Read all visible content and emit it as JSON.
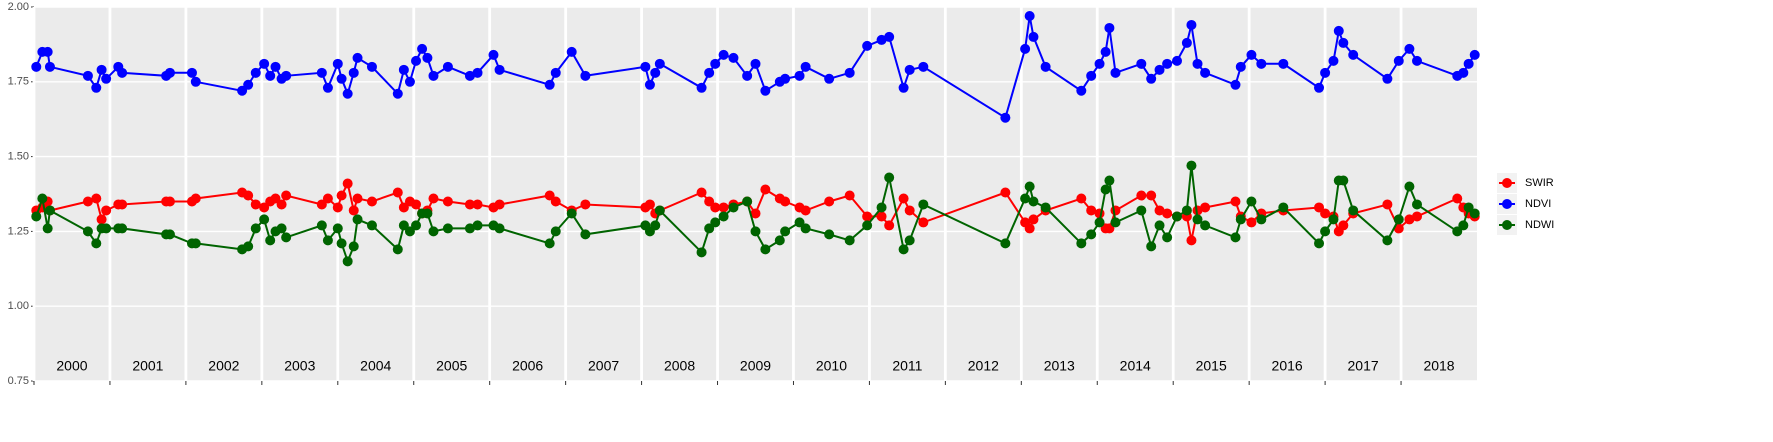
{
  "chart_data": {
    "type": "line",
    "x": [
      2000.03,
      2000.11,
      2000.18,
      2000.21,
      2000.71,
      2000.82,
      2000.89,
      2000.95,
      2001.11,
      2001.16,
      2001.74,
      2001.79,
      2002.08,
      2002.13,
      2002.74,
      2002.82,
      2002.92,
      2003.03,
      2003.11,
      2003.18,
      2003.26,
      2003.32,
      2003.79,
      2003.87,
      2004.0,
      2004.05,
      2004.13,
      2004.21,
      2004.26,
      2004.45,
      2004.79,
      2004.87,
      2004.95,
      2005.03,
      2005.11,
      2005.18,
      2005.26,
      2005.45,
      2005.74,
      2005.84,
      2006.05,
      2006.13,
      2006.79,
      2006.87,
      2007.08,
      2007.26,
      2008.05,
      2008.11,
      2008.18,
      2008.24,
      2008.79,
      2008.89,
      2008.97,
      2009.08,
      2009.21,
      2009.39,
      2009.5,
      2009.63,
      2009.82,
      2009.89,
      2010.08,
      2010.16,
      2010.47,
      2010.74,
      2010.97,
      2011.16,
      2011.26,
      2011.45,
      2011.53,
      2011.71,
      2012.79,
      2013.05,
      2013.11,
      2013.16,
      2013.32,
      2013.79,
      2013.92,
      2014.03,
      2014.11,
      2014.16,
      2014.24,
      2014.58,
      2014.71,
      2014.82,
      2014.92,
      2015.05,
      2015.18,
      2015.24,
      2015.32,
      2015.42,
      2015.82,
      2015.89,
      2016.03,
      2016.16,
      2016.45,
      2016.92,
      2017.0,
      2017.11,
      2017.18,
      2017.24,
      2017.37,
      2017.82,
      2017.97,
      2018.11,
      2018.21,
      2018.74,
      2018.82,
      2018.89,
      2018.97
    ],
    "series": [
      {
        "name": "SWIR",
        "color": "#ff0000",
        "values": [
          1.32,
          1.33,
          1.35,
          1.32,
          1.35,
          1.36,
          1.29,
          1.32,
          1.34,
          1.34,
          1.35,
          1.35,
          1.35,
          1.36,
          1.38,
          1.37,
          1.34,
          1.33,
          1.35,
          1.36,
          1.34,
          1.37,
          1.34,
          1.36,
          1.33,
          1.37,
          1.41,
          1.32,
          1.36,
          1.35,
          1.38,
          1.33,
          1.35,
          1.34,
          1.31,
          1.32,
          1.36,
          1.35,
          1.34,
          1.34,
          1.33,
          1.34,
          1.37,
          1.35,
          1.32,
          1.34,
          1.33,
          1.34,
          1.31,
          1.32,
          1.38,
          1.35,
          1.33,
          1.33,
          1.34,
          1.35,
          1.31,
          1.39,
          1.36,
          1.35,
          1.33,
          1.32,
          1.35,
          1.37,
          1.3,
          1.3,
          1.27,
          1.36,
          1.32,
          1.28,
          1.38,
          1.28,
          1.26,
          1.29,
          1.32,
          1.36,
          1.32,
          1.31,
          1.26,
          1.26,
          1.32,
          1.37,
          1.37,
          1.32,
          1.31,
          1.3,
          1.3,
          1.22,
          1.32,
          1.33,
          1.35,
          1.3,
          1.28,
          1.31,
          1.32,
          1.33,
          1.31,
          1.3,
          1.25,
          1.27,
          1.31,
          1.34,
          1.26,
          1.29,
          1.3,
          1.36,
          1.33,
          1.31,
          1.3
        ]
      },
      {
        "name": "NDVI",
        "color": "#0000ff",
        "values": [
          1.8,
          1.85,
          1.85,
          1.8,
          1.77,
          1.73,
          1.79,
          1.76,
          1.8,
          1.78,
          1.77,
          1.78,
          1.78,
          1.75,
          1.72,
          1.74,
          1.78,
          1.81,
          1.77,
          1.8,
          1.76,
          1.77,
          1.78,
          1.73,
          1.81,
          1.76,
          1.71,
          1.78,
          1.83,
          1.8,
          1.71,
          1.79,
          1.75,
          1.82,
          1.86,
          1.83,
          1.77,
          1.8,
          1.77,
          1.78,
          1.84,
          1.79,
          1.74,
          1.78,
          1.85,
          1.77,
          1.8,
          1.74,
          1.78,
          1.81,
          1.73,
          1.78,
          1.81,
          1.84,
          1.83,
          1.77,
          1.81,
          1.72,
          1.75,
          1.76,
          1.77,
          1.8,
          1.76,
          1.78,
          1.87,
          1.89,
          1.9,
          1.73,
          1.79,
          1.8,
          1.63,
          1.86,
          1.97,
          1.9,
          1.8,
          1.72,
          1.77,
          1.81,
          1.85,
          1.93,
          1.78,
          1.81,
          1.76,
          1.79,
          1.81,
          1.82,
          1.88,
          1.94,
          1.81,
          1.78,
          1.74,
          1.8,
          1.84,
          1.81,
          1.81,
          1.73,
          1.78,
          1.82,
          1.92,
          1.88,
          1.84,
          1.76,
          1.82,
          1.86,
          1.82,
          1.77,
          1.78,
          1.81,
          1.84
        ]
      },
      {
        "name": "NDWI",
        "color": "#006400",
        "values": [
          1.3,
          1.36,
          1.26,
          1.32,
          1.25,
          1.21,
          1.26,
          1.26,
          1.26,
          1.26,
          1.24,
          1.24,
          1.21,
          1.21,
          1.19,
          1.2,
          1.26,
          1.29,
          1.22,
          1.25,
          1.26,
          1.23,
          1.27,
          1.22,
          1.26,
          1.21,
          1.15,
          1.2,
          1.29,
          1.27,
          1.19,
          1.27,
          1.25,
          1.27,
          1.31,
          1.31,
          1.25,
          1.26,
          1.26,
          1.27,
          1.27,
          1.26,
          1.21,
          1.25,
          1.31,
          1.24,
          1.27,
          1.25,
          1.27,
          1.32,
          1.18,
          1.26,
          1.28,
          1.3,
          1.33,
          1.35,
          1.25,
          1.19,
          1.22,
          1.25,
          1.28,
          1.26,
          1.24,
          1.22,
          1.27,
          1.33,
          1.43,
          1.19,
          1.22,
          1.34,
          1.21,
          1.36,
          1.4,
          1.35,
          1.33,
          1.21,
          1.24,
          1.28,
          1.39,
          1.42,
          1.28,
          1.32,
          1.2,
          1.27,
          1.23,
          1.3,
          1.32,
          1.47,
          1.29,
          1.27,
          1.23,
          1.29,
          1.35,
          1.29,
          1.33,
          1.21,
          1.25,
          1.29,
          1.42,
          1.42,
          1.32,
          1.22,
          1.29,
          1.4,
          1.34,
          1.25,
          1.27,
          1.33,
          1.31
        ]
      }
    ],
    "xlim": [
      2000,
      2019
    ],
    "xticks": [
      2000,
      2001,
      2002,
      2003,
      2004,
      2005,
      2006,
      2007,
      2008,
      2009,
      2010,
      2011,
      2012,
      2013,
      2014,
      2015,
      2016,
      2017,
      2018
    ],
    "ylim": [
      0.75,
      2.0
    ],
    "yticks": [
      {
        "value": 0.75,
        "label": "0.75"
      },
      {
        "value": 1.0,
        "label": "1.00"
      },
      {
        "value": 1.25,
        "label": "1.25"
      },
      {
        "value": 1.5,
        "label": "1.50"
      },
      {
        "value": 1.75,
        "label": "1.75"
      },
      {
        "value": 2.0,
        "label": "2.00"
      }
    ],
    "grid": true,
    "legend": "right"
  }
}
